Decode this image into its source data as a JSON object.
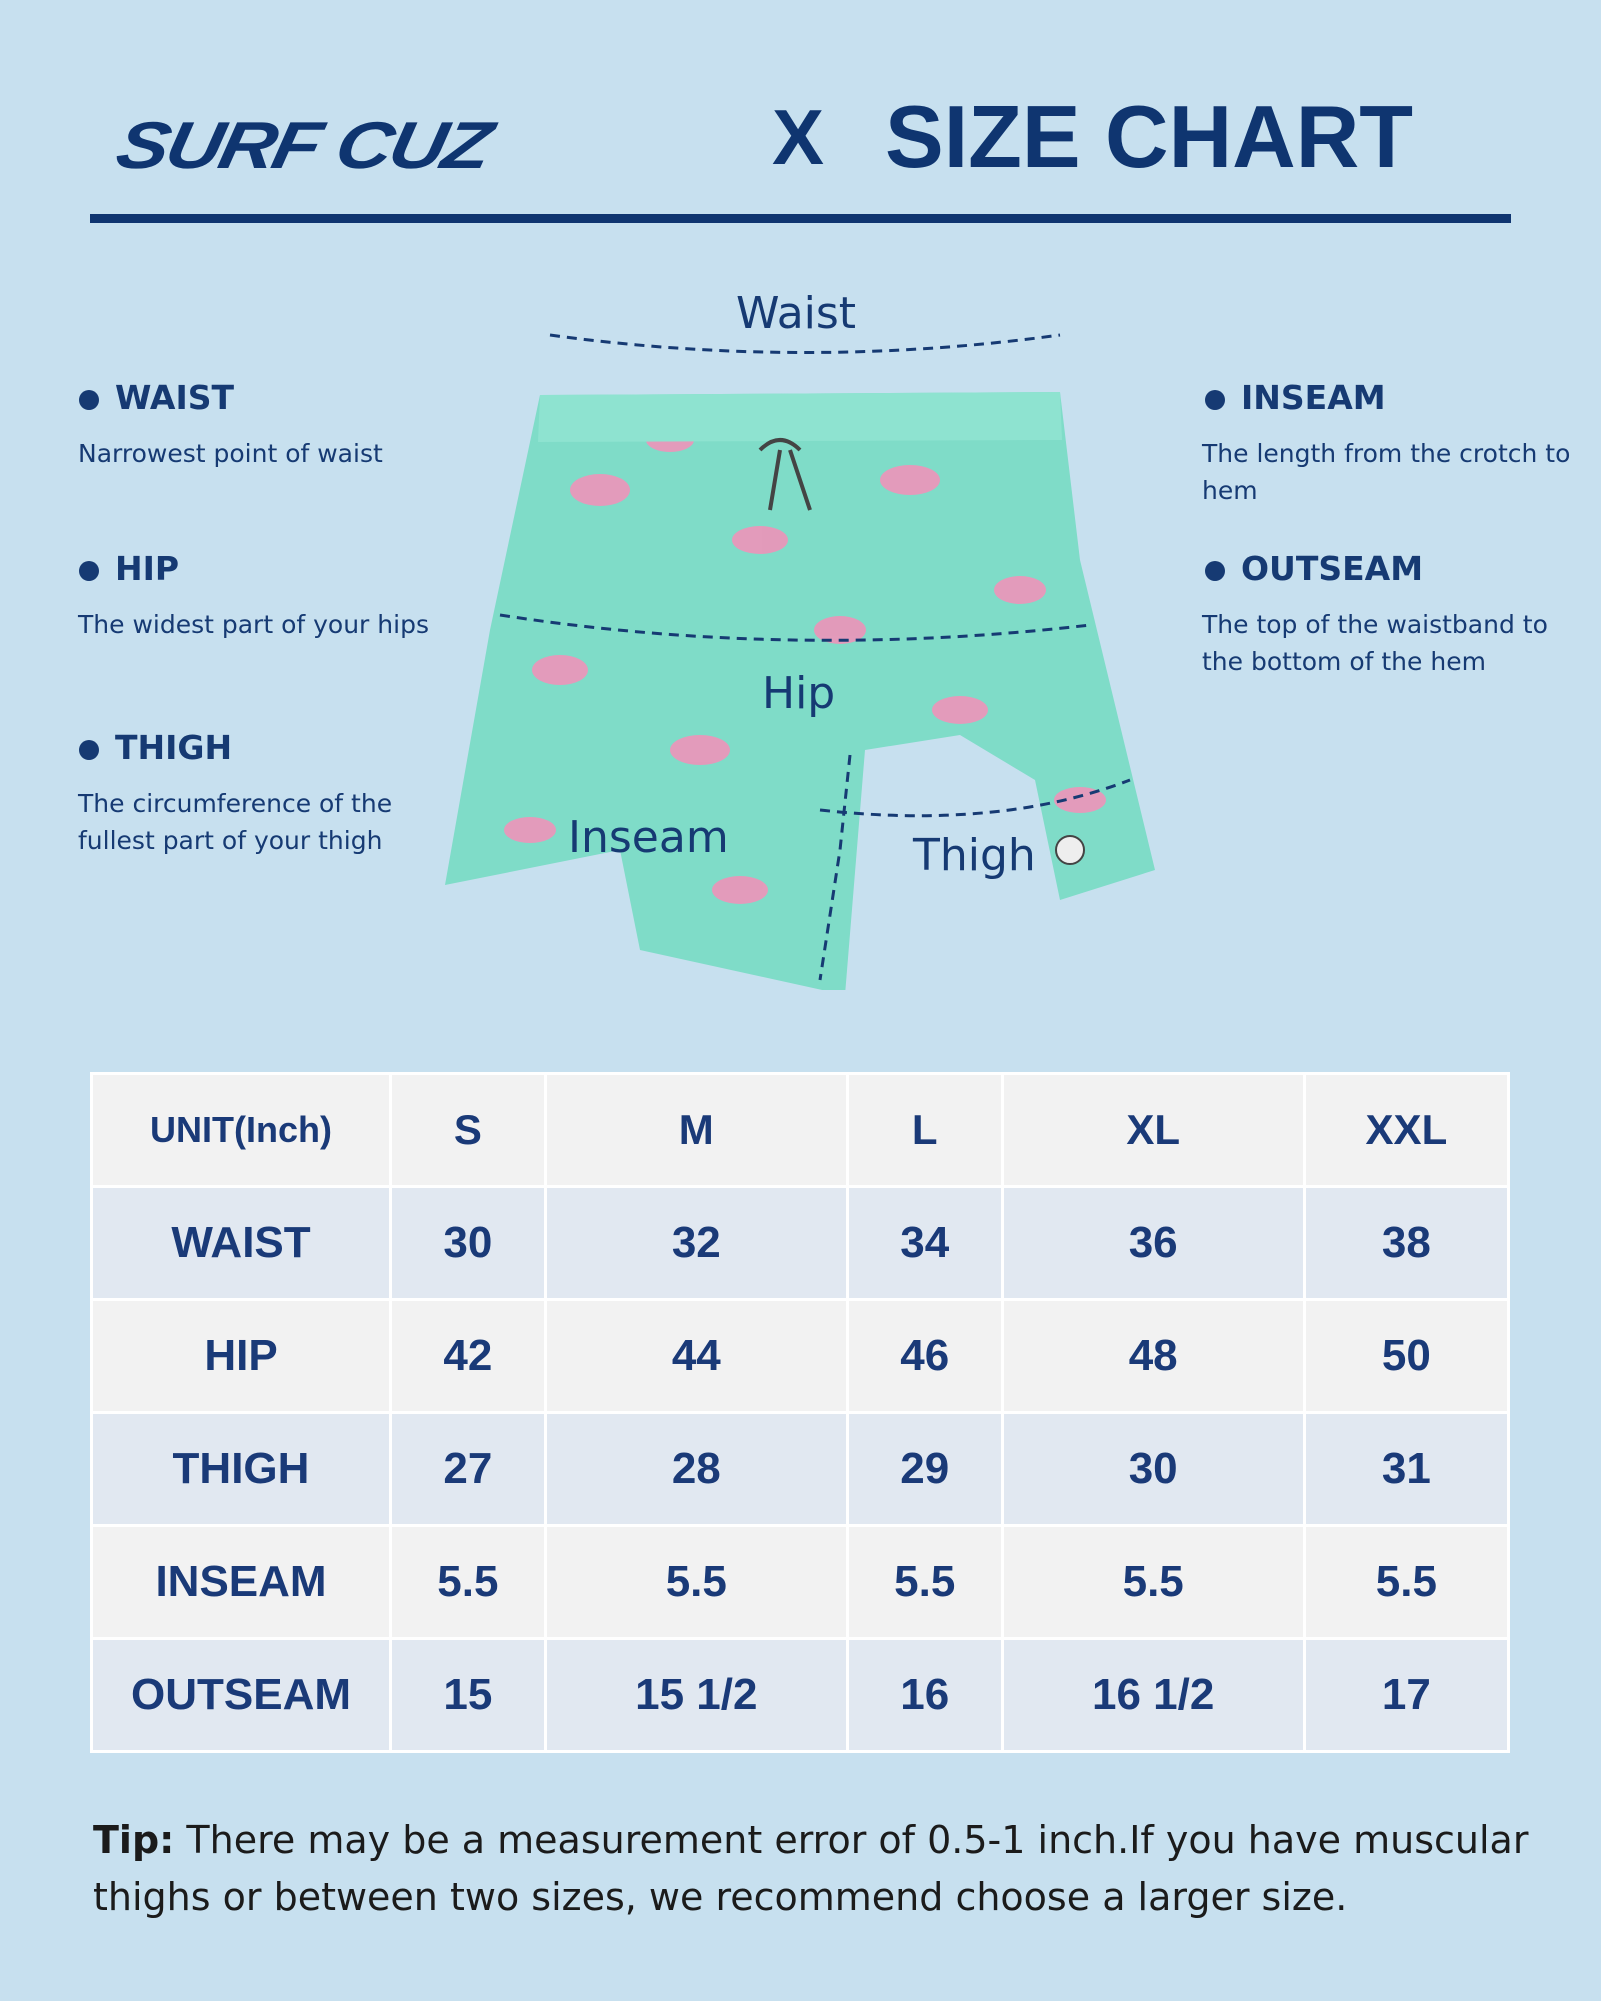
{
  "header": {
    "brand": "SURF CUZ",
    "separator": "X",
    "title": "SIZE CHART"
  },
  "diagram": {
    "waist_label": "Waist",
    "hip_label": "Hip",
    "inseam_label": "Inseam",
    "thigh_label": "Thigh"
  },
  "measures_left": [
    {
      "title": "WAIST",
      "desc": "Narrowest point of waist"
    },
    {
      "title": "HIP",
      "desc": "The widest part of your hips"
    },
    {
      "title": "THIGH",
      "desc": "The circumference of the fullest part of your thigh"
    }
  ],
  "measures_right": [
    {
      "title": "INSEAM",
      "desc": "The length from the crotch to hem"
    },
    {
      "title": "OUTSEAM",
      "desc": "The top of the waistband to the bottom of the hem"
    }
  ],
  "table": {
    "headers": [
      "UNIT(Inch)",
      "S",
      "M",
      "L",
      "XL",
      "XXL"
    ],
    "rows": [
      [
        "WAIST",
        "30",
        "32",
        "34",
        "36",
        "38"
      ],
      [
        "HIP",
        "42",
        "44",
        "46",
        "48",
        "50"
      ],
      [
        "THIGH",
        "27",
        "28",
        "29",
        "30",
        "31"
      ],
      [
        "INSEAM",
        "5.5",
        "5.5",
        "5.5",
        "5.5",
        "5.5"
      ],
      [
        "OUTSEAM",
        "15",
        "15 1/2",
        "16",
        "16 1/2",
        "17"
      ]
    ]
  },
  "tip": {
    "label": "Tip:",
    "text": " There may be a measurement error of 0.5-1 inch.If you have muscular thighs or between two sizes, we recommend choose a larger size."
  },
  "colors": {
    "background": "#c7e0ef",
    "navy": "#0f3570",
    "shorts": "#7fdcc8",
    "flamingo": "#f48fb8"
  }
}
